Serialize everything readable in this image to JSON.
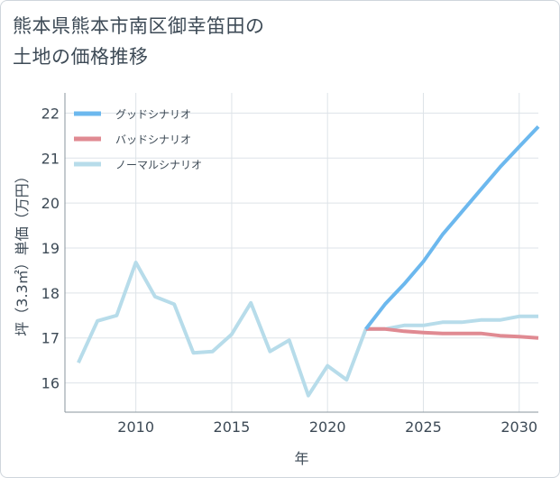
{
  "title_line1": "熊本県熊本市南区御幸笛田の",
  "title_line2": "土地の価格推移",
  "chart_data": {
    "type": "line",
    "xlabel": "年",
    "ylabel": "坪（3.3㎡）単価（万円）",
    "xlim": [
      2006.3,
      2031
    ],
    "ylim": [
      15.35,
      22.45
    ],
    "xticks": [
      2010,
      2015,
      2020,
      2025,
      2030
    ],
    "yticks": [
      16,
      17,
      18,
      19,
      20,
      21,
      22
    ],
    "grid": true,
    "legend_position": "top-left",
    "series": [
      {
        "name": "グッドシナリオ",
        "color": "#6cb8ee",
        "x": [
          2022,
          2023,
          2024,
          2025,
          2026,
          2027,
          2028,
          2029,
          2030,
          2031
        ],
        "values": [
          17.2,
          17.75,
          18.2,
          18.7,
          19.3,
          19.8,
          20.3,
          20.8,
          21.25,
          21.7
        ]
      },
      {
        "name": "バッドシナリオ",
        "color": "#e08a92",
        "x": [
          2022,
          2023,
          2024,
          2025,
          2026,
          2027,
          2028,
          2029,
          2030,
          2031
        ],
        "values": [
          17.2,
          17.2,
          17.15,
          17.12,
          17.1,
          17.1,
          17.1,
          17.05,
          17.03,
          17.0
        ]
      },
      {
        "name": "ノーマルシナリオ",
        "color": "#b7dcea",
        "x": [
          2007,
          2008,
          2009,
          2010,
          2011,
          2012,
          2013,
          2014,
          2015,
          2016,
          2017,
          2018,
          2019,
          2020,
          2021,
          2022,
          2023,
          2024,
          2025,
          2026,
          2027,
          2028,
          2029,
          2030,
          2031
        ],
        "values": [
          16.45,
          17.38,
          17.5,
          18.68,
          17.92,
          17.75,
          16.67,
          16.7,
          17.08,
          17.78,
          16.7,
          16.95,
          15.72,
          16.38,
          16.07,
          17.2,
          17.2,
          17.28,
          17.28,
          17.35,
          17.35,
          17.4,
          17.4,
          17.48,
          17.48
        ]
      }
    ]
  }
}
